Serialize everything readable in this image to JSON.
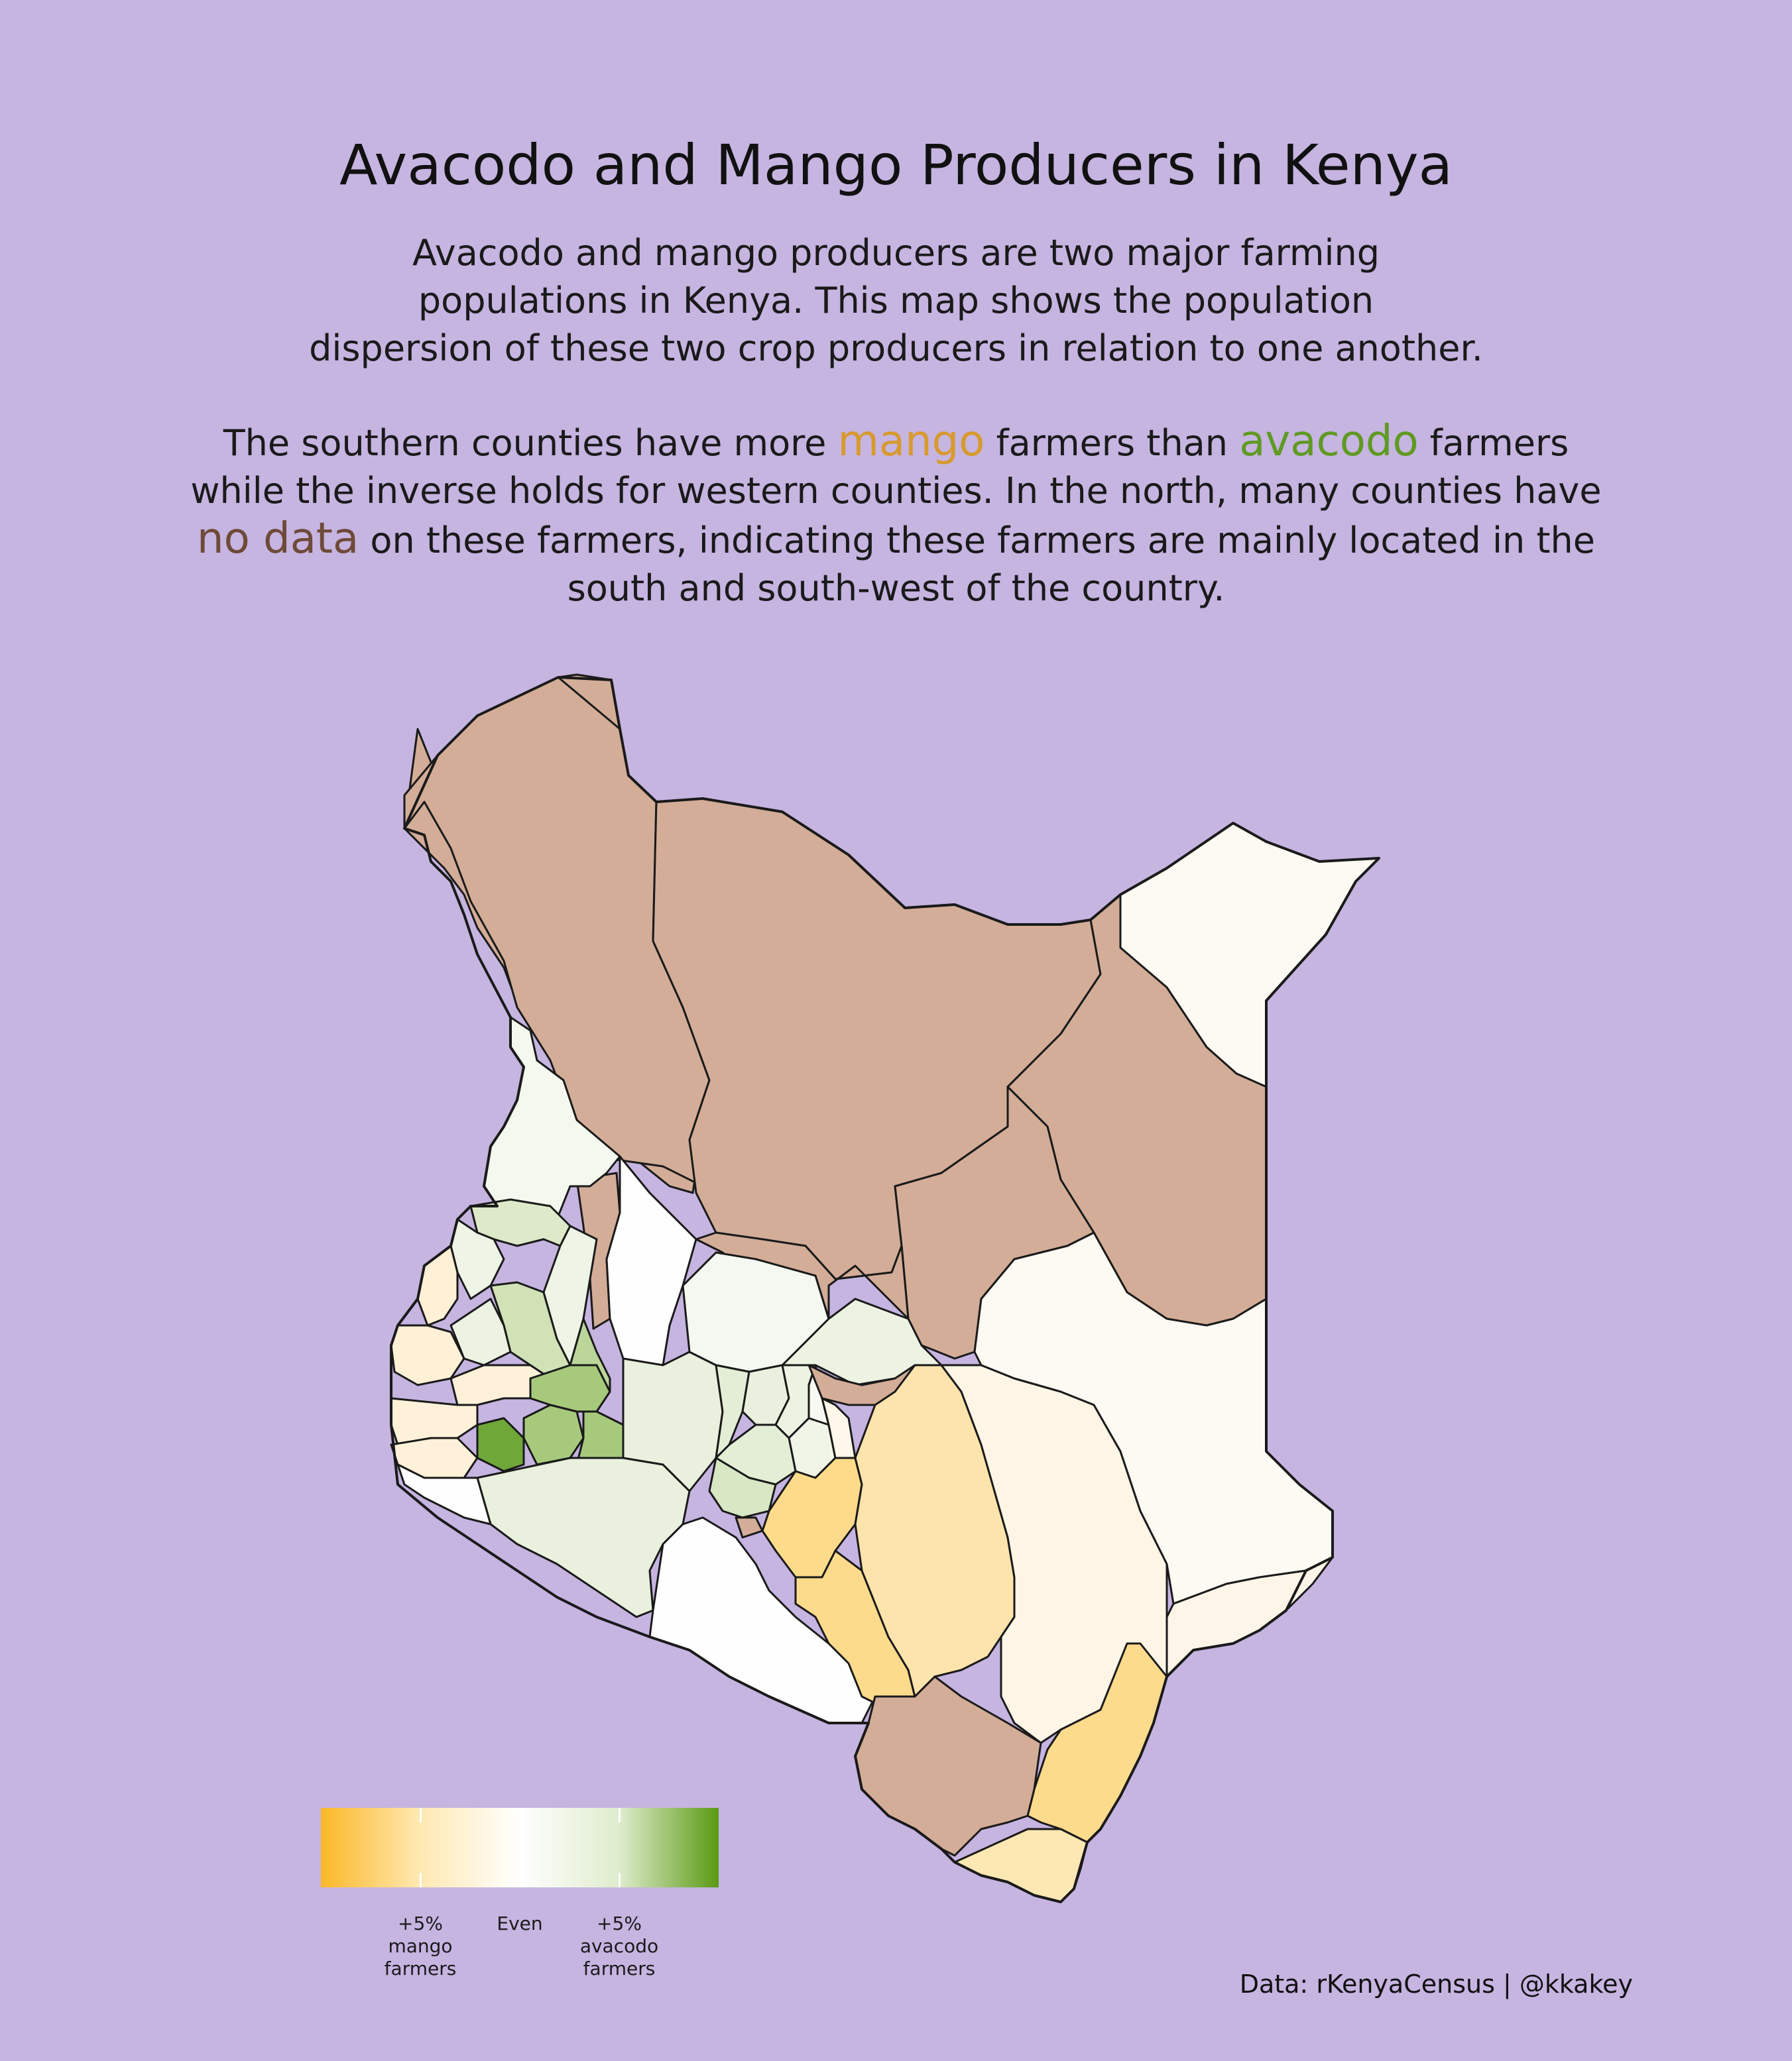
{
  "title": "Avacodo and Mango Producers in Kenya",
  "intro": {
    "line1": "Avacodo and mango producers are two major farming",
    "line2": "populations in Kenya. This map shows the population",
    "line3": "dispersion of these two crop producers in relation to one another."
  },
  "story": {
    "line1_a": "The southern counties have more",
    "line1_mango": "mango",
    "line1_b": "farmers than",
    "line1_avocado": "avacodo",
    "line1_c": "farmers",
    "line2": "while the inverse holds for western counties. In the north, many counties have",
    "line3_nodata": "no data",
    "line3_b": "on these farmers, indicating these farmers are mainly located in the",
    "line4": "south and south-west of the country."
  },
  "colors": {
    "background": "#c6b4e1",
    "mango_accent": "#d79a2c",
    "avocado_accent": "#5f9a22",
    "no_data": "#d3ad98",
    "no_data_text": "#6e4a38",
    "scale_mango": "#fbb829",
    "scale_even": "#ffffff",
    "scale_avocado": "#5b9a14",
    "border": "#1a1a1a"
  },
  "legend": {
    "mango_label": "+5%\nmango\nfarmers",
    "even_label": "Even",
    "avocado_label": "+5%\navacodo\nfarmers"
  },
  "source": "Data: rKenyaCensus | @kkakey"
}
